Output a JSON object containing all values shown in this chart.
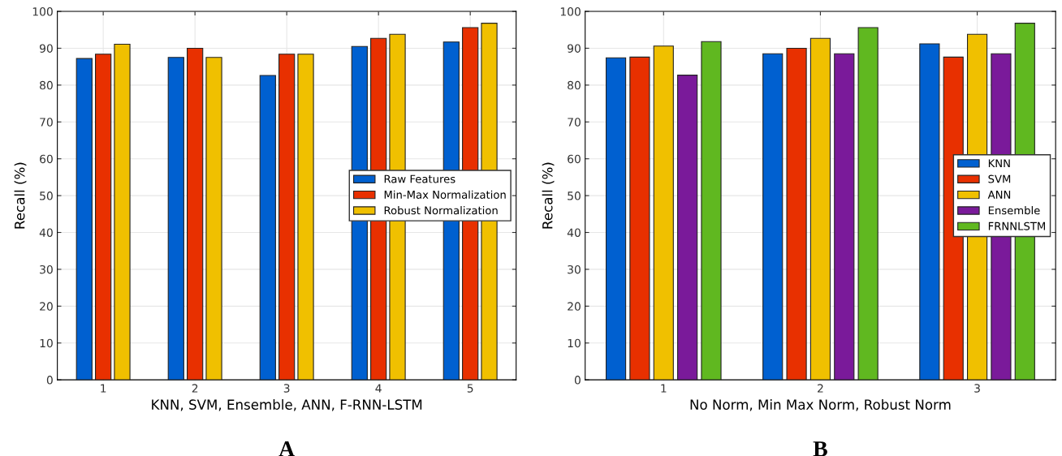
{
  "chart_data": [
    {
      "type": "bar",
      "title": "A",
      "xlabel": "KNN, SVM, Ensemble, ANN, F-RNN-LSTM",
      "ylabel": "Recall (%)",
      "categories": [
        "1",
        "2",
        "3",
        "4",
        "5"
      ],
      "series": [
        {
          "name": "Raw Features",
          "color": "#0060d0",
          "values": [
            87.2,
            87.5,
            82.6,
            90.5,
            91.7
          ]
        },
        {
          "name": "Min-Max Normalization",
          "color": "#e83000",
          "values": [
            88.4,
            90.0,
            88.4,
            92.7,
            95.6
          ]
        },
        {
          "name": "Robust Normalization",
          "color": "#f0c000",
          "values": [
            91.1,
            87.5,
            88.4,
            93.8,
            96.8
          ]
        }
      ],
      "ylim": [
        0,
        100
      ],
      "yticks": [
        0,
        10,
        20,
        30,
        40,
        50,
        60,
        70,
        80,
        90,
        100
      ],
      "grid": true,
      "legend": "center right"
    },
    {
      "type": "bar",
      "title": "B",
      "xlabel": "No Norm, Min Max Norm, Robust Norm",
      "ylabel": "Recall (%)",
      "categories": [
        "1",
        "2",
        "3"
      ],
      "series": [
        {
          "name": "KNN",
          "color": "#0060d0",
          "values": [
            87.4,
            88.5,
            91.2
          ]
        },
        {
          "name": "SVM",
          "color": "#e83000",
          "values": [
            87.6,
            90.0,
            87.6
          ]
        },
        {
          "name": "ANN",
          "color": "#f0c000",
          "values": [
            90.6,
            92.7,
            93.8
          ]
        },
        {
          "name": "Ensemble",
          "color": "#7a1a9a",
          "values": [
            82.7,
            88.5,
            88.5
          ]
        },
        {
          "name": "FRNNLSTM",
          "color": "#60b820",
          "values": [
            91.8,
            95.6,
            96.8
          ]
        }
      ],
      "ylim": [
        0,
        100
      ],
      "yticks": [
        0,
        10,
        20,
        30,
        40,
        50,
        60,
        70,
        80,
        90,
        100
      ],
      "grid": true,
      "legend": "center right"
    }
  ]
}
